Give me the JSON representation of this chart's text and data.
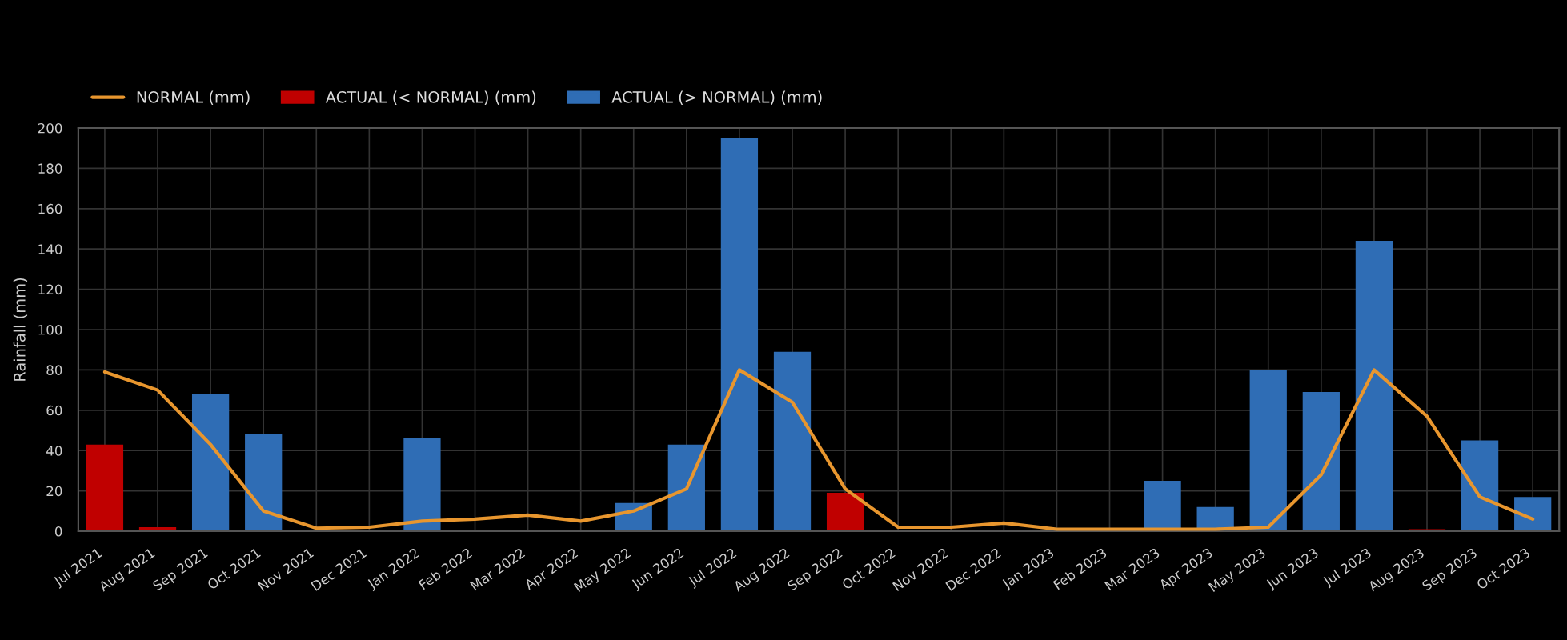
{
  "chart_data": {
    "type": "bar",
    "ylabel": "Rainfall (mm)",
    "categories": [
      "Jul 2021",
      "Aug 2021",
      "Sep 2021",
      "Oct 2021",
      "Nov 2021",
      "Dec 2021",
      "Jan 2022",
      "Feb 2022",
      "Mar 2022",
      "Apr 2022",
      "May 2022",
      "Jun 2022",
      "Jul 2022",
      "Aug 2022",
      "Sep 2022",
      "Oct 2022",
      "Nov 2022",
      "Dec 2022",
      "Jan 2023",
      "Feb 2023",
      "Mar 2023",
      "Apr 2023",
      "May 2023",
      "Jun 2023",
      "Jul 2023",
      "Aug 2023",
      "Sep 2023",
      "Oct 2023"
    ],
    "series": [
      {
        "name": "NORMAL (mm)",
        "type": "line",
        "color": "#e8962e",
        "values": [
          79,
          70,
          43,
          10,
          1.5,
          2,
          5,
          6,
          8,
          5,
          10,
          21,
          80,
          64,
          21,
          2,
          2,
          4,
          1,
          1,
          1,
          1,
          2,
          28,
          80,
          57,
          17,
          6
        ]
      },
      {
        "name": "ACTUAL (< NORMAL) (mm)",
        "color": "#c00000",
        "values": [
          43,
          2,
          null,
          null,
          null,
          null,
          null,
          null,
          null,
          null,
          null,
          null,
          null,
          null,
          19,
          null,
          null,
          null,
          null,
          null,
          null,
          null,
          null,
          null,
          null,
          1,
          null,
          null
        ]
      },
      {
        "name": "ACTUAL (> NORMAL) (mm)",
        "color": "#2f6db5",
        "values": [
          null,
          null,
          68,
          48,
          null,
          null,
          46,
          null,
          null,
          null,
          14,
          43,
          195,
          89,
          null,
          null,
          null,
          null,
          null,
          null,
          25,
          12,
          80,
          69,
          144,
          null,
          45,
          17
        ]
      }
    ],
    "ylim": [
      0,
      200
    ],
    "yticks": [
      0,
      20,
      40,
      60,
      80,
      100,
      120,
      140,
      160,
      180,
      200
    ],
    "grid": true,
    "legend": "top left"
  }
}
